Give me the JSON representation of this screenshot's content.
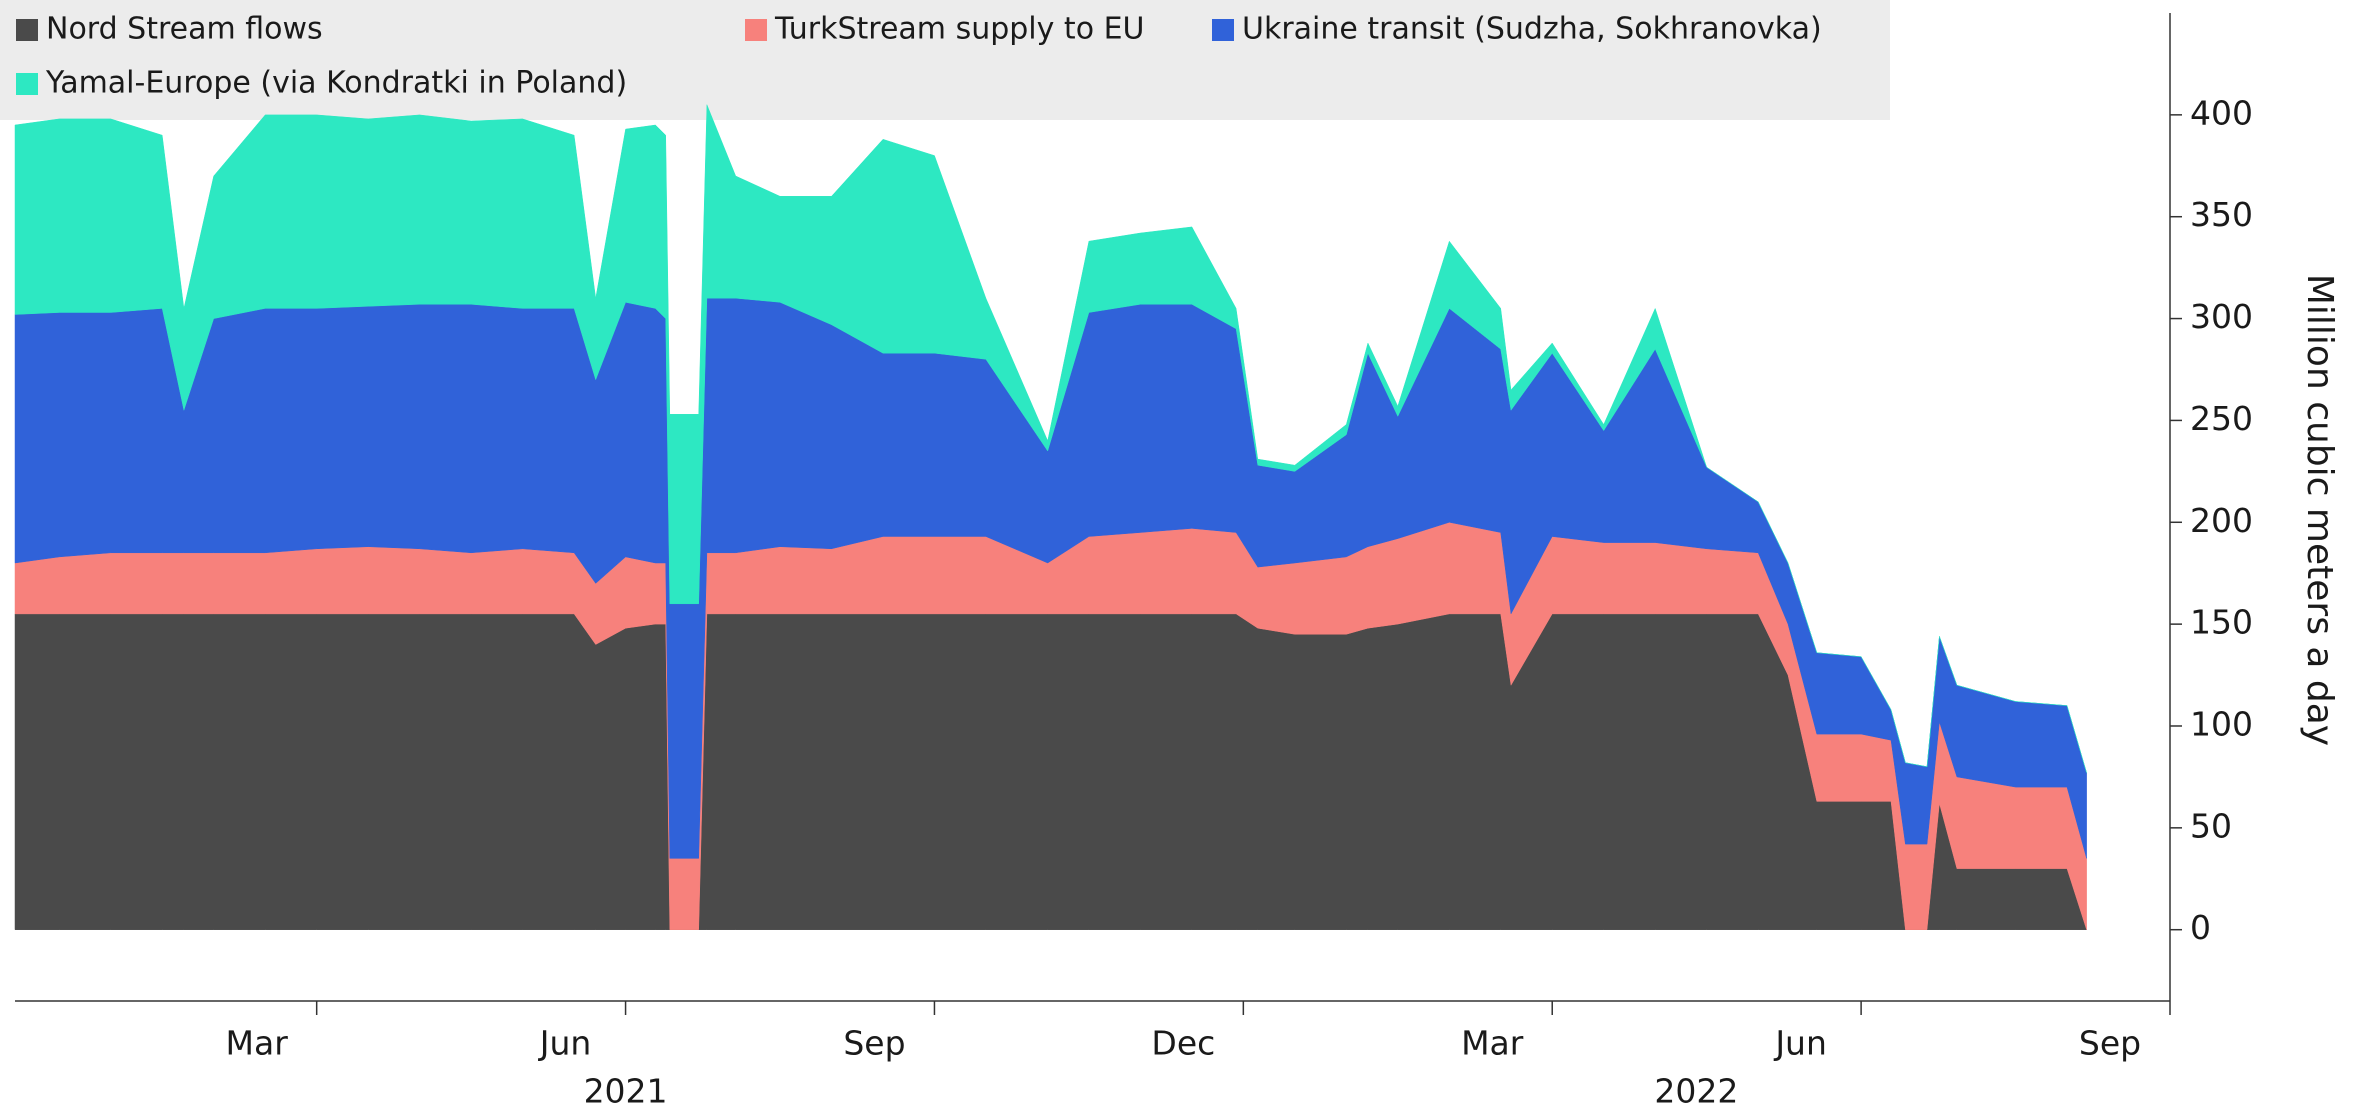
{
  "chart_data": {
    "type": "stacked_area",
    "y_axis_label": "Million cubic meters a day",
    "x": [
      -0.93,
      -0.5,
      0,
      0.5,
      0.71,
      1.0,
      1.5,
      2.0,
      2.5,
      3.0,
      3.5,
      4.0,
      4.5,
      4.71,
      5.0,
      5.29,
      5.39,
      5.43,
      5.71,
      5.79,
      6.07,
      6.5,
      7.0,
      7.5,
      8.0,
      8.5,
      9.1,
      9.5,
      10.0,
      10.5,
      10.93,
      11.14,
      11.5,
      12.0,
      12.21,
      12.5,
      13.0,
      13.5,
      13.6,
      14.0,
      14.5,
      15.0,
      15.5,
      16.0,
      16.29,
      16.57,
      17.0,
      17.29,
      17.43,
      17.64,
      17.76,
      17.93,
      18.5,
      19.0,
      19.19
    ],
    "series": [
      {
        "name": "Nord Stream flows",
        "color": "#4a4a4a",
        "values": [
          155,
          155,
          155,
          155,
          155,
          155,
          155,
          155,
          155,
          155,
          155,
          155,
          155,
          140,
          148,
          150,
          150,
          0,
          0,
          155,
          155,
          155,
          155,
          155,
          155,
          155,
          155,
          155,
          155,
          155,
          155,
          148,
          145,
          145,
          148,
          150,
          155,
          155,
          120,
          155,
          155,
          155,
          155,
          155,
          125,
          63,
          63,
          63,
          0,
          0,
          62,
          30,
          30,
          30,
          0
        ]
      },
      {
        "name": "TurkStream supply to EU",
        "color": "#f7817c",
        "values": [
          25,
          28,
          30,
          30,
          30,
          30,
          30,
          32,
          33,
          32,
          30,
          32,
          30,
          30,
          35,
          30,
          30,
          35,
          35,
          30,
          30,
          33,
          32,
          38,
          38,
          38,
          25,
          38,
          40,
          42,
          40,
          30,
          35,
          38,
          40,
          42,
          45,
          40,
          35,
          38,
          35,
          35,
          32,
          30,
          25,
          33,
          33,
          30,
          42,
          42,
          40,
          45,
          40,
          40,
          35
        ]
      },
      {
        "name": "Ukraine transit (Sudzha, Sokhranovka)",
        "color": "#3062d9",
        "values": [
          122,
          120,
          118,
          120,
          70,
          115,
          120,
          118,
          118,
          120,
          122,
          118,
          120,
          100,
          125,
          125,
          120,
          125,
          125,
          125,
          125,
          120,
          110,
          90,
          90,
          87,
          55,
          110,
          112,
          110,
          100,
          50,
          45,
          60,
          95,
          60,
          105,
          90,
          100,
          90,
          55,
          95,
          40,
          25,
          30,
          40,
          38,
          15,
          40,
          38,
          42,
          45,
          42,
          40,
          42
        ]
      },
      {
        "name": "Yamal-Europe (via Kondratki in Poland)",
        "color": "#2de8c2",
        "values": [
          93,
          95,
          95,
          85,
          50,
          70,
          95,
          95,
          92,
          93,
          90,
          93,
          85,
          40,
          85,
          90,
          90,
          93,
          93,
          95,
          60,
          52,
          63,
          105,
          97,
          30,
          5,
          35,
          35,
          38,
          10,
          3,
          3,
          5,
          5,
          5,
          33,
          20,
          10,
          5,
          3,
          20,
          0,
          0,
          0,
          0,
          0,
          0,
          0,
          0,
          0,
          0,
          0,
          0,
          0
        ]
      }
    ],
    "xlim": [
      -0.93,
      20
    ],
    "xticks": [
      {
        "value": 2,
        "label": "Mar"
      },
      {
        "value": 5,
        "label": "Jun"
      },
      {
        "value": 8,
        "label": "Sep"
      },
      {
        "value": 11,
        "label": "Dec"
      },
      {
        "value": 14,
        "label": "Mar"
      },
      {
        "value": 17,
        "label": "Jun"
      },
      {
        "value": 20,
        "label": "Sep"
      }
    ],
    "year_labels": [
      {
        "value": 5,
        "label": "2021"
      },
      {
        "value": 15.4,
        "label": "2022"
      }
    ],
    "ylim": [
      -35,
      450
    ],
    "yticks": [
      0,
      50,
      100,
      150,
      200,
      250,
      300,
      350,
      400
    ],
    "grid": false,
    "legend": "top-left"
  }
}
